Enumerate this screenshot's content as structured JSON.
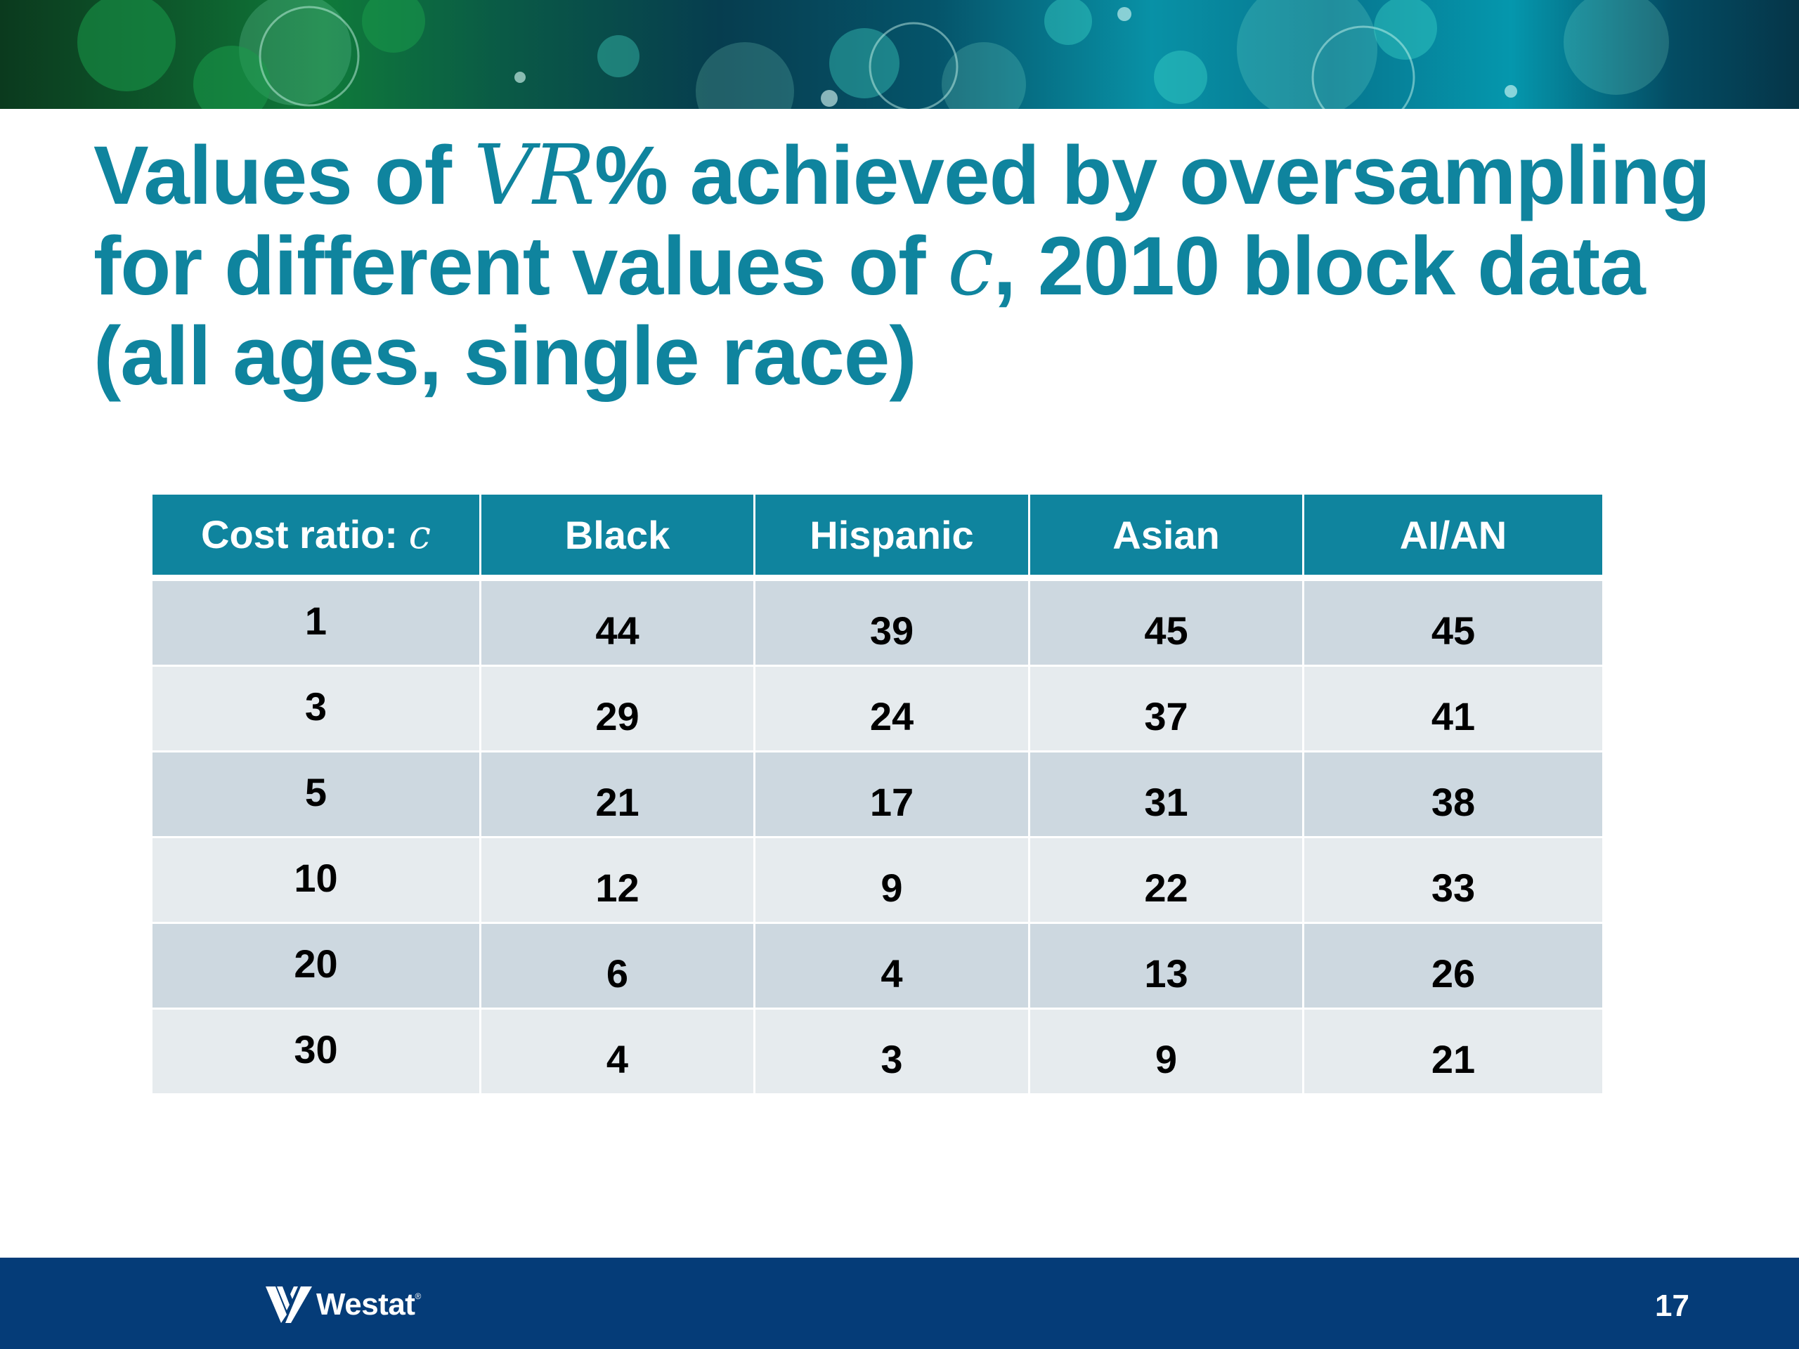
{
  "slide": {
    "title_part1": "Values of ",
    "title_math1": "VR",
    "title_part2": "% achieved by oversampling for different values of ",
    "title_math2": "c",
    "title_part3": ", 2010 block data (all ages, single race)"
  },
  "table": {
    "header": {
      "c_label": "Cost ratio: ",
      "c_symbol": "c",
      "columns": [
        "Black",
        "Hispanic",
        "Asian",
        "AI/AN"
      ]
    },
    "rows": [
      {
        "c": "1",
        "values": [
          "44",
          "39",
          "45",
          "45"
        ]
      },
      {
        "c": "3",
        "values": [
          "29",
          "24",
          "37",
          "41"
        ]
      },
      {
        "c": "5",
        "values": [
          "21",
          "17",
          "31",
          "38"
        ]
      },
      {
        "c": "10",
        "values": [
          "12",
          "9",
          "22",
          "33"
        ]
      },
      {
        "c": "20",
        "values": [
          "6",
          "4",
          "13",
          "26"
        ]
      },
      {
        "c": "30",
        "values": [
          "4",
          "3",
          "9",
          "21"
        ]
      }
    ]
  },
  "footer": {
    "logo_text": "Westat",
    "logo_tm": "®",
    "page_number": "17"
  },
  "colors": {
    "title": "#0f849e",
    "header_bg": "#0f849e",
    "row_dark": "#cdd8e0",
    "row_light": "#e6ebee",
    "footer_bg": "#053c78"
  }
}
